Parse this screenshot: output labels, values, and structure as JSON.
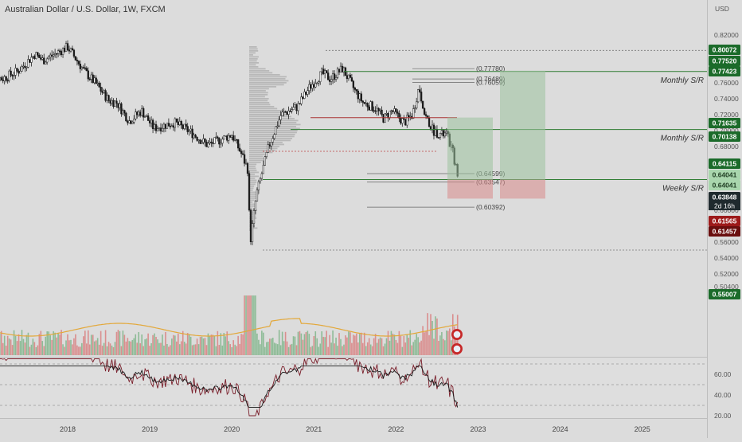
{
  "title": "Australian Dollar / U.S. Dollar, 1W, FXCM",
  "chart_data": {
    "type": "candlestick",
    "symbol": "AUDUSD",
    "timeframe": "1W",
    "currency": "USD",
    "x_ticks": [
      "2018",
      "2019",
      "2020",
      "2021",
      "2022",
      "2023",
      "2024",
      "2025"
    ],
    "y_ticks": [
      "0.82000",
      "0.80000",
      "0.78000",
      "0.76000",
      "0.74000",
      "0.72000",
      "0.70000",
      "0.68000",
      "0.66000",
      "0.64000",
      "0.62000",
      "0.60000",
      "0.58000",
      "0.56000",
      "0.54000",
      "0.52000",
      "0.50400"
    ],
    "ylim": [
      0.504,
      0.826
    ],
    "price_path": [
      [
        2017.0,
        0.772
      ],
      [
        2017.2,
        0.765
      ],
      [
        2017.4,
        0.775
      ],
      [
        2017.6,
        0.796
      ],
      [
        2017.7,
        0.788
      ],
      [
        2018.0,
        0.805
      ],
      [
        2018.2,
        0.775
      ],
      [
        2018.35,
        0.758
      ],
      [
        2018.5,
        0.738
      ],
      [
        2018.6,
        0.735
      ],
      [
        2018.75,
        0.712
      ],
      [
        2018.9,
        0.725
      ],
      [
        2019.05,
        0.703
      ],
      [
        2019.3,
        0.71
      ],
      [
        2019.5,
        0.698
      ],
      [
        2019.7,
        0.682
      ],
      [
        2019.85,
        0.688
      ],
      [
        2020.0,
        0.695
      ],
      [
        2020.12,
        0.67
      ],
      [
        2020.2,
        0.65
      ],
      [
        2020.22,
        0.556
      ],
      [
        2020.3,
        0.62
      ],
      [
        2020.45,
        0.68
      ],
      [
        2020.6,
        0.72
      ],
      [
        2020.8,
        0.73
      ],
      [
        2020.95,
        0.755
      ],
      [
        2021.1,
        0.772
      ],
      [
        2021.2,
        0.765
      ],
      [
        2021.35,
        0.778
      ],
      [
        2021.5,
        0.75
      ],
      [
        2021.6,
        0.735
      ],
      [
        2021.75,
        0.728
      ],
      [
        2021.85,
        0.715
      ],
      [
        2021.95,
        0.725
      ],
      [
        2022.1,
        0.71
      ],
      [
        2022.2,
        0.72
      ],
      [
        2022.28,
        0.755
      ],
      [
        2022.35,
        0.72
      ],
      [
        2022.45,
        0.7
      ],
      [
        2022.55,
        0.695
      ],
      [
        2022.62,
        0.695
      ],
      [
        2022.7,
        0.67
      ],
      [
        2022.76,
        0.637
      ]
    ],
    "price_labels": [
      {
        "text": "0.80072",
        "color": "#1b6b2a"
      },
      {
        "text": "0.77520",
        "color": "#1b6b2a"
      },
      {
        "text": "0.77423",
        "color": "#1b6b2a"
      },
      {
        "text": "0.71635",
        "color": "#1b6b2a"
      },
      {
        "text": "0.70138",
        "color": "#1b6b2a"
      },
      {
        "text": "0.64115",
        "color": "#1b6b2a"
      },
      {
        "text": "0.64041",
        "color": "#a9d6ad"
      },
      {
        "text": "0.64041",
        "color": "#a9d6ad"
      },
      {
        "text": "0.63848",
        "color": "#1f2a2e"
      },
      {
        "text": "0.61565",
        "color": "#9d1a1a"
      },
      {
        "text": "0.61457",
        "color": "#6a0e0e"
      },
      {
        "text": "0.55007",
        "color": "#1b6b2a"
      }
    ],
    "countdown": "2d 16h",
    "levels": [
      {
        "price": 0.7742,
        "label": "Monthly S/R",
        "color": "#2e7d32"
      },
      {
        "price": 0.7014,
        "label": "Monthly S/R",
        "color": "#2e7d32"
      },
      {
        "price": 0.6385,
        "label": "Weekly S/R",
        "color": "#2e7d32"
      }
    ],
    "bracket_labels": [
      "(0.77780)",
      "(0.76489)",
      "(0.76059)",
      "(0.64599)",
      "(0.63547)",
      "(0.60392)"
    ],
    "rsi": {
      "ticks": [
        "60.00",
        "40.00",
        "20.00"
      ],
      "ylim": [
        10,
        78
      ],
      "upper": 70,
      "lower": 30
    }
  }
}
